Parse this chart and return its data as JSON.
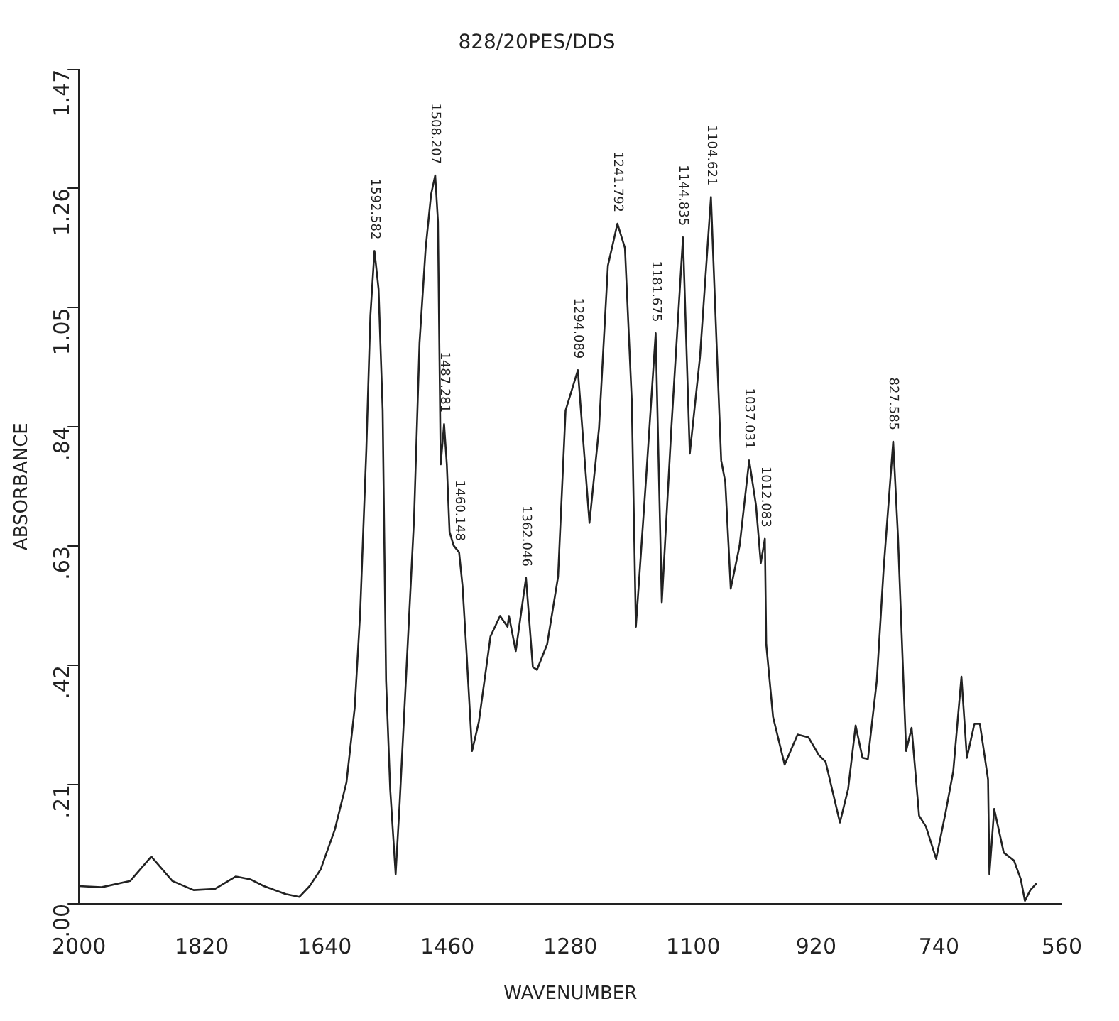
{
  "chart_data": {
    "type": "line",
    "title": "828/20PES/DDS",
    "xlabel": "WAVENUMBER",
    "ylabel": "ABSORBANCE",
    "xlim": [
      2000,
      560
    ],
    "xticks": [
      2000,
      1820,
      1640,
      1460,
      1280,
      1100,
      920,
      740,
      560
    ],
    "ylim": [
      0,
      1.47
    ],
    "yticks": [
      {
        "value": 0,
        "label": ".00"
      },
      {
        "value": 0.21,
        "label": ".21"
      },
      {
        "value": 0.42,
        "label": ".42"
      },
      {
        "value": 0.63,
        "label": ".63"
      },
      {
        "value": 0.84,
        "label": ".84"
      },
      1.05,
      1.26,
      1.47
    ],
    "grid": false,
    "legend": false,
    "x": [
      2000,
      1967,
      1925,
      1894,
      1863,
      1832,
      1801,
      1770,
      1749,
      1729,
      1697,
      1677,
      1662,
      1646,
      1625,
      1608,
      1596,
      1588,
      1579,
      1573,
      1567,
      1561,
      1555,
      1550,
      1544,
      1536,
      1530,
      1521,
      1509,
      1501,
      1492,
      1484,
      1478,
      1474,
      1470,
      1465,
      1461,
      1457,
      1451,
      1443,
      1438,
      1432,
      1424,
      1414,
      1397,
      1383,
      1372,
      1370,
      1360,
      1345,
      1335,
      1329,
      1314,
      1298,
      1287,
      1269,
      1252,
      1238,
      1225,
      1211,
      1200,
      1190,
      1184,
      1169,
      1155,
      1146,
      1132,
      1115,
      1105,
      1090,
      1074,
      1065,
      1059,
      1053,
      1045,
      1032,
      1018,
      1008,
      1001,
      995,
      993,
      983,
      966,
      947,
      931,
      916,
      906,
      885,
      873,
      862,
      852,
      844,
      831,
      821,
      807,
      800,
      792,
      788,
      780,
      769,
      759,
      744,
      730,
      719,
      707,
      699,
      688,
      680,
      668,
      666,
      659,
      645,
      630,
      620,
      614,
      606,
      597
    ],
    "series": [
      {
        "color": "#222222",
        "values": [
          0.031,
          0.029,
          0.04,
          0.083,
          0.04,
          0.024,
          0.026,
          0.048,
          0.043,
          0.031,
          0.017,
          0.012,
          0.031,
          0.06,
          0.131,
          0.214,
          0.345,
          0.512,
          0.798,
          1.036,
          1.15,
          1.083,
          0.869,
          0.393,
          0.202,
          0.052,
          0.179,
          0.393,
          0.679,
          0.988,
          1.155,
          1.25,
          1.283,
          1.202,
          0.774,
          0.845,
          0.774,
          0.655,
          0.631,
          0.619,
          0.56,
          0.44,
          0.269,
          0.321,
          0.471,
          0.507,
          0.488,
          0.507,
          0.445,
          0.574,
          0.417,
          0.412,
          0.457,
          0.576,
          0.869,
          0.94,
          0.671,
          0.838,
          1.124,
          1.198,
          1.155,
          0.886,
          0.488,
          0.75,
          1.005,
          0.531,
          0.838,
          1.174,
          0.793,
          0.964,
          1.245,
          0.964,
          0.781,
          0.743,
          0.555,
          0.631,
          0.781,
          0.702,
          0.6,
          0.643,
          0.457,
          0.329,
          0.245,
          0.298,
          0.293,
          0.262,
          0.25,
          0.143,
          0.202,
          0.314,
          0.257,
          0.255,
          0.393,
          0.59,
          0.814,
          0.648,
          0.393,
          0.269,
          0.31,
          0.155,
          0.136,
          0.079,
          0.162,
          0.233,
          0.4,
          0.257,
          0.317,
          0.317,
          0.219,
          0.052,
          0.167,
          0.09,
          0.076,
          0.043,
          0.005,
          0.024,
          0.036
        ]
      }
    ],
    "annotations": [
      {
        "text": "1592.582",
        "x": 1567,
        "y": 1.15
      },
      {
        "text": "1508.207",
        "x": 1478,
        "y": 1.283
      },
      {
        "text": "1487.281",
        "x": 1465,
        "y": 0.845
      },
      {
        "text": "1460.148",
        "x": 1443,
        "y": 0.619
      },
      {
        "text": "1362.046",
        "x": 1345,
        "y": 0.574
      },
      {
        "text": "1294.089",
        "x": 1269,
        "y": 0.94
      },
      {
        "text": "1241.792",
        "x": 1211,
        "y": 1.198
      },
      {
        "text": "1181.675",
        "x": 1155,
        "y": 1.005
      },
      {
        "text": "1144.835",
        "x": 1115,
        "y": 1.174
      },
      {
        "text": "1104.621",
        "x": 1074,
        "y": 1.245
      },
      {
        "text": "1037.031",
        "x": 1018,
        "y": 0.781
      },
      {
        "text": "1012.083",
        "x": 995,
        "y": 0.643
      },
      {
        "text": "827.585",
        "x": 807,
        "y": 0.814
      }
    ]
  }
}
